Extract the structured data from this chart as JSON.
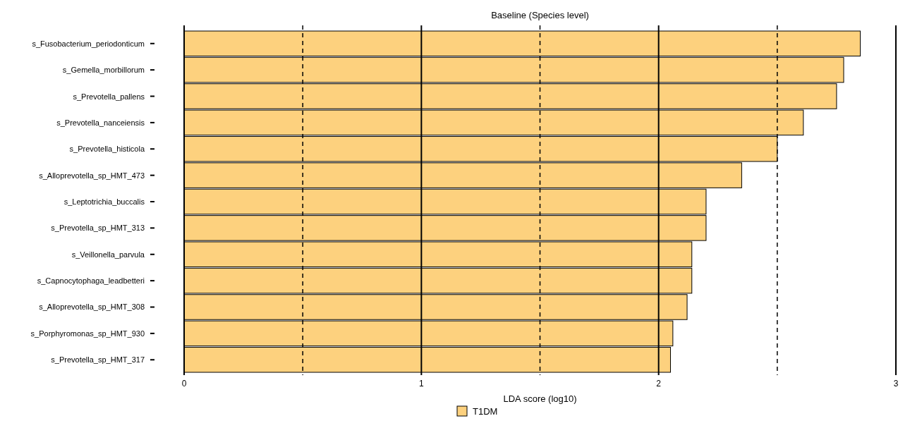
{
  "chart_data": {
    "type": "bar",
    "orientation": "horizontal",
    "title": "Baseline (Species level)",
    "xlabel": "LDA score (log10)",
    "categories": [
      "s_Fusobacterium_periodonticum",
      "s_Gemella_morbillorum",
      "s_Prevotella_pallens",
      "s_Prevotella_nanceiensis",
      "s_Prevotella_histicola",
      "s_Alloprevotella_sp_HMT_473",
      "s_Leptotrichia_buccalis",
      "s_Prevotella_sp_HMT_313",
      "s_Veillonella_parvula",
      "s_Capnocytophaga_leadbetteri",
      "s_Alloprevotella_sp_HMT_308",
      "s_Porphyromonas_sp_HMT_930",
      "s_Prevotella_sp_HMT_317"
    ],
    "series": [
      {
        "name": "T1DM",
        "color": "#fdd17e",
        "values": [
          2.85,
          2.78,
          2.75,
          2.61,
          2.5,
          2.35,
          2.2,
          2.2,
          2.14,
          2.14,
          2.12,
          2.06,
          2.05
        ]
      }
    ],
    "xlim": [
      0,
      3
    ],
    "xticks": [
      0,
      {
        "value": 0.5,
        "label": null
      },
      1,
      {
        "value": 1.5,
        "label": null
      },
      2,
      {
        "value": 2.5,
        "label": null
      },
      3
    ],
    "grid": "x",
    "legend": "bottom"
  }
}
